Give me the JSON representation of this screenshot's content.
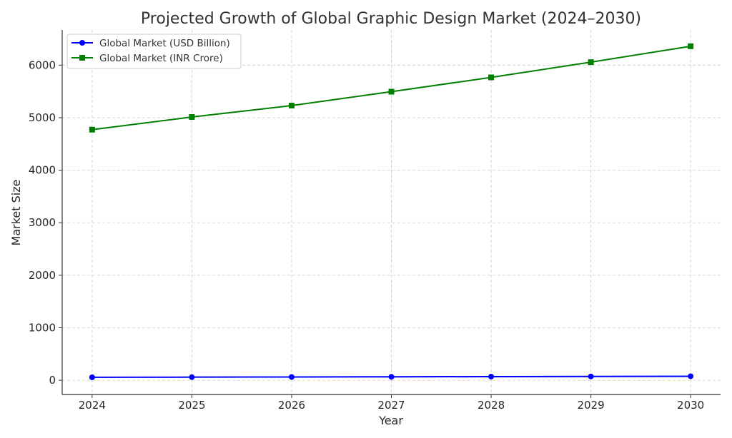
{
  "chart_data": {
    "type": "line",
    "title": "Projected Growth of Global Graphic Design Market (2024–2030)",
    "xlabel": "Year",
    "ylabel": "Market Size",
    "x": [
      2024,
      2025,
      2026,
      2027,
      2028,
      2029,
      2030
    ],
    "xlim": [
      2023.7,
      2030.3
    ],
    "ylim": [
      -270,
      6670
    ],
    "yticks": [
      0,
      1000,
      2000,
      3000,
      4000,
      5000,
      6000
    ],
    "grid": true,
    "legend_position": "top-left",
    "series": [
      {
        "name": "Global Market (USD Billion)",
        "values": [
          57.5,
          60.4,
          63.4,
          66.6,
          69.9,
          73.4,
          77.1
        ],
        "color": "#0000ff",
        "marker": "circle"
      },
      {
        "name": "Global Market (INR Crore)",
        "values": [
          4772,
          5013,
          5230,
          5495,
          5767,
          6057,
          6360
        ],
        "color": "#008000",
        "marker": "square"
      }
    ]
  }
}
